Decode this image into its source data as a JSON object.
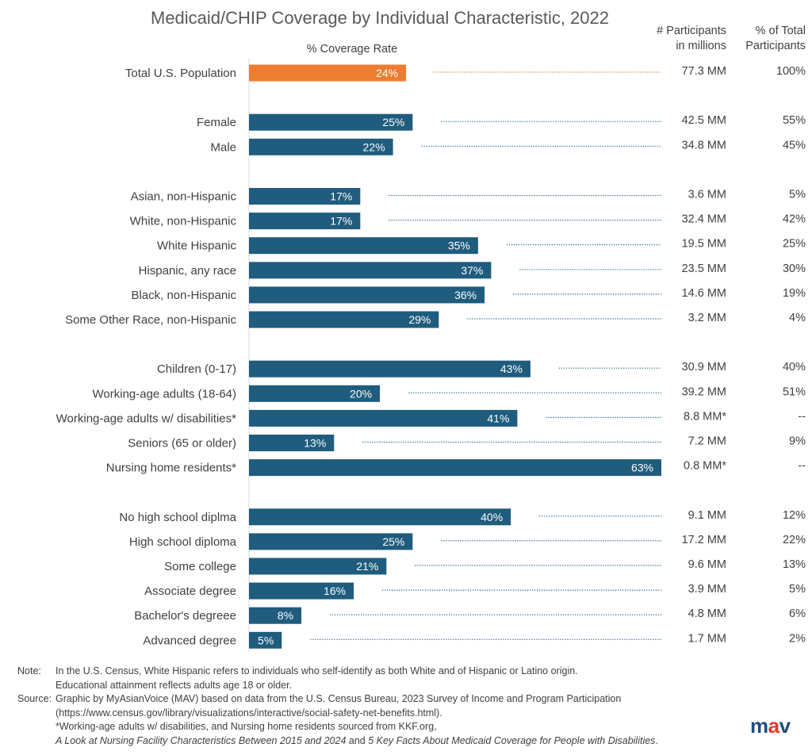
{
  "chart_data": {
    "type": "bar",
    "orientation": "horizontal",
    "title": "Medicaid/CHIP Coverage by Individual Characteristic, 2022",
    "xlabel": "% Coverage Rate",
    "xlim": [
      0,
      63
    ],
    "column_headers": {
      "participants_line1": "# Participants",
      "participants_line2": "in millions",
      "share_line1": "% of Total",
      "share_line2": "Participants"
    },
    "colors": {
      "highlight": "#ED7D31",
      "bar": "#1F5C7D",
      "dots_highlight": "#ED7D31",
      "dots": "#1F5C7D"
    },
    "rows": [
      {
        "label": "Total U.S. Population",
        "value": 24,
        "value_label": "24%",
        "participants": "77.3 MM",
        "share": "100%",
        "highlight": true,
        "group": 0
      },
      {
        "label": "Female",
        "value": 25,
        "value_label": "25%",
        "participants": "42.5 MM",
        "share": "55%",
        "group": 1
      },
      {
        "label": "Male",
        "value": 22,
        "value_label": "22%",
        "participants": "34.8 MM",
        "share": "45%",
        "group": 1
      },
      {
        "label": "Asian, non-Hispanic",
        "value": 17,
        "value_label": "17%",
        "participants": "3.6 MM",
        "share": "5%",
        "group": 2
      },
      {
        "label": "White, non-Hispanic",
        "value": 17,
        "value_label": "17%",
        "participants": "32.4 MM",
        "share": "42%",
        "group": 2
      },
      {
        "label": "White Hispanic",
        "value": 35,
        "value_label": "35%",
        "participants": "19.5 MM",
        "share": "25%",
        "group": 2
      },
      {
        "label": "Hispanic, any race",
        "value": 37,
        "value_label": "37%",
        "participants": "23.5 MM",
        "share": "30%",
        "group": 2
      },
      {
        "label": "Black, non-Hispanic",
        "value": 36,
        "value_label": "36%",
        "participants": "14.6 MM",
        "share": "19%",
        "group": 2
      },
      {
        "label": "Some Other Race, non-Hispanic",
        "value": 29,
        "value_label": "29%",
        "participants": "3.2 MM",
        "share": "4%",
        "group": 2
      },
      {
        "label": "Children  (0-17)",
        "value": 43,
        "value_label": "43%",
        "participants": "30.9 MM",
        "share": "40%",
        "group": 3
      },
      {
        "label": "Working-age adults (18-64)",
        "value": 20,
        "value_label": "20%",
        "participants": "39.2 MM",
        "share": "51%",
        "group": 3
      },
      {
        "label": "Working-age adults w/ disabilities*",
        "value": 41,
        "value_label": "41%",
        "participants": "8.8 MM*",
        "share": "--",
        "group": 3
      },
      {
        "label": "Seniors (65 or older)",
        "value": 13,
        "value_label": "13%",
        "participants": "7.2 MM",
        "share": "9%",
        "group": 3
      },
      {
        "label": "Nursing home residents*",
        "value": 63,
        "value_label": "63%",
        "participants": "0.8 MM*",
        "share": "--",
        "group": 3
      },
      {
        "label": "No high school diplma",
        "value": 40,
        "value_label": "40%",
        "participants": "9.1 MM",
        "share": "12%",
        "group": 4
      },
      {
        "label": "High school diploma",
        "value": 25,
        "value_label": "25%",
        "participants": "17.2 MM",
        "share": "22%",
        "group": 4
      },
      {
        "label": "Some college",
        "value": 21,
        "value_label": "21%",
        "participants": "9.6 MM",
        "share": "13%",
        "group": 4
      },
      {
        "label": "Associate degree",
        "value": 16,
        "value_label": "16%",
        "participants": "3.9 MM",
        "share": "5%",
        "group": 4
      },
      {
        "label": "Bachelor's degreee",
        "value": 8,
        "value_label": "8%",
        "participants": "4.8 MM",
        "share": "6%",
        "group": 4
      },
      {
        "label": "Advanced degree",
        "value": 5,
        "value_label": "5%",
        "participants": "1.7 MM",
        "share": "2%",
        "group": 4
      }
    ]
  },
  "notes": {
    "note_label": "Note:",
    "note_line1": "In the U.S. Census, White Hispanic refers to individuals who self-identify as both White and of Hispanic or Latino origin.",
    "note_line2": "Educational attainment reflects adults age 18 or older.",
    "source_label": "Source:",
    "source_line1": "Graphic by MyAsianVoice (MAV) based on data from the U.S. Census Bureau, 2023 Survey of Income and Program Participation",
    "source_line2": "(https://www.census.gov/library/visualizations/interactive/social-safety-net-benefits.html).",
    "source_line3": "*Working-age adults w/ disabilities, and Nursing home residents sourced from KKF.org,",
    "source_line4_a": "A Look at Nursing Facility Characteristics Between 2015 and 2024",
    "source_line4_b": " and ",
    "source_line4_c": "5 Key Facts About Medicaid Coverage for People with Disabilities",
    "source_line4_d": "."
  },
  "logo": {
    "m": "m",
    "a": "a",
    "v": "v"
  }
}
